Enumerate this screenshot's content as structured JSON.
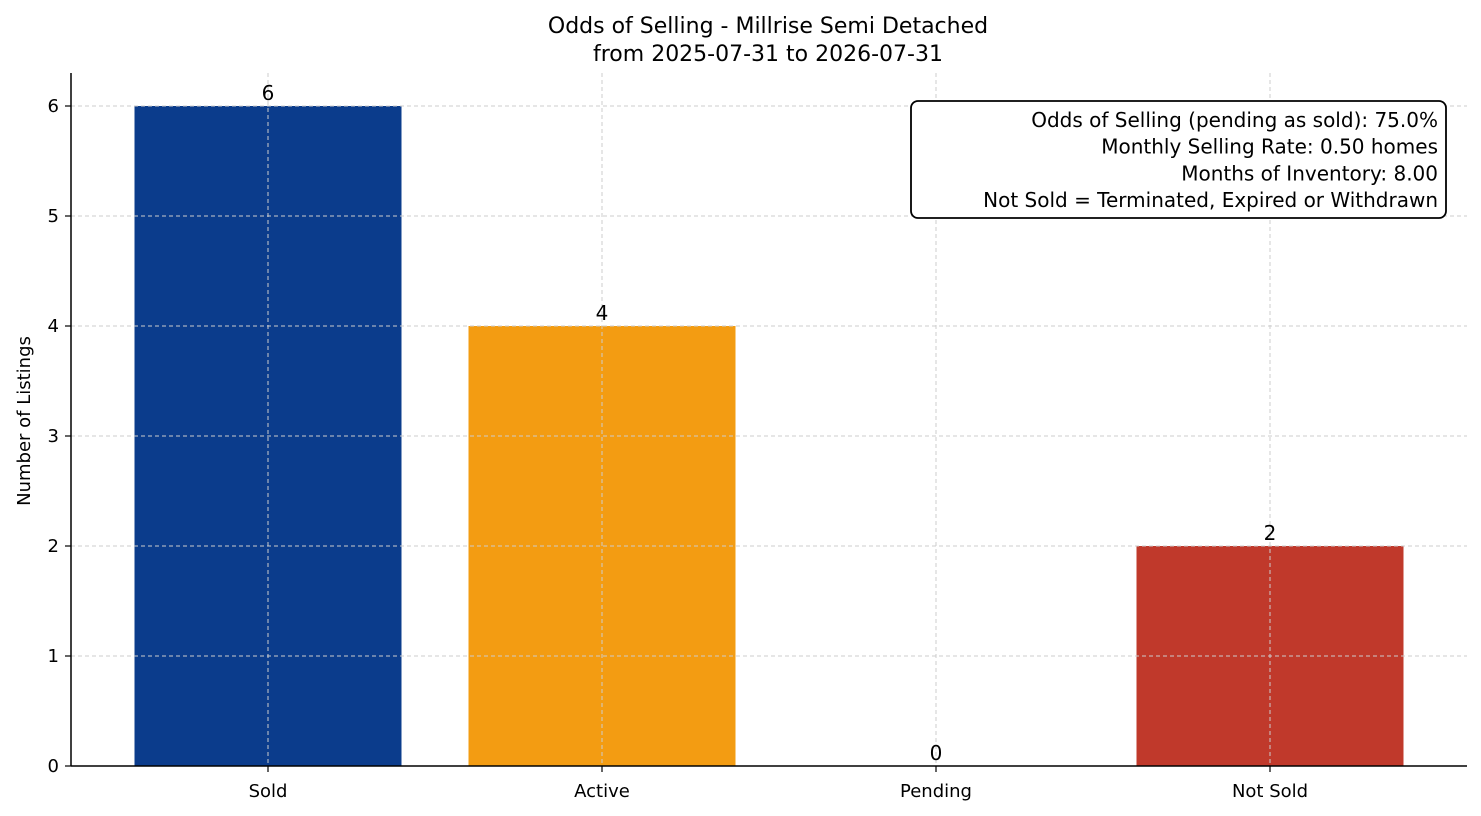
{
  "chart_data": {
    "type": "bar",
    "title": "Odds of Selling - Millrise Semi Detached",
    "subtitle": "from 2025-07-31 to 2026-07-31",
    "xlabel": "",
    "ylabel": "Number of Listings",
    "categories": [
      "Sold",
      "Active",
      "Pending",
      "Not Sold"
    ],
    "values": [
      6,
      4,
      0,
      2
    ],
    "colors": [
      "#0b3c8c",
      "#f39c12",
      "#f5c242",
      "#c0392b"
    ],
    "ylim": [
      0,
      6.3
    ],
    "yticks": [
      0,
      1,
      2,
      3,
      4,
      5,
      6
    ],
    "grid": true,
    "info_box": {
      "placement": "top-right",
      "lines": [
        "Odds of Selling (pending as sold): 75.0%",
        "Monthly Selling Rate: 0.50 homes",
        "Months of Inventory: 8.00",
        "Not Sold = Terminated, Expired or Withdrawn"
      ]
    }
  }
}
